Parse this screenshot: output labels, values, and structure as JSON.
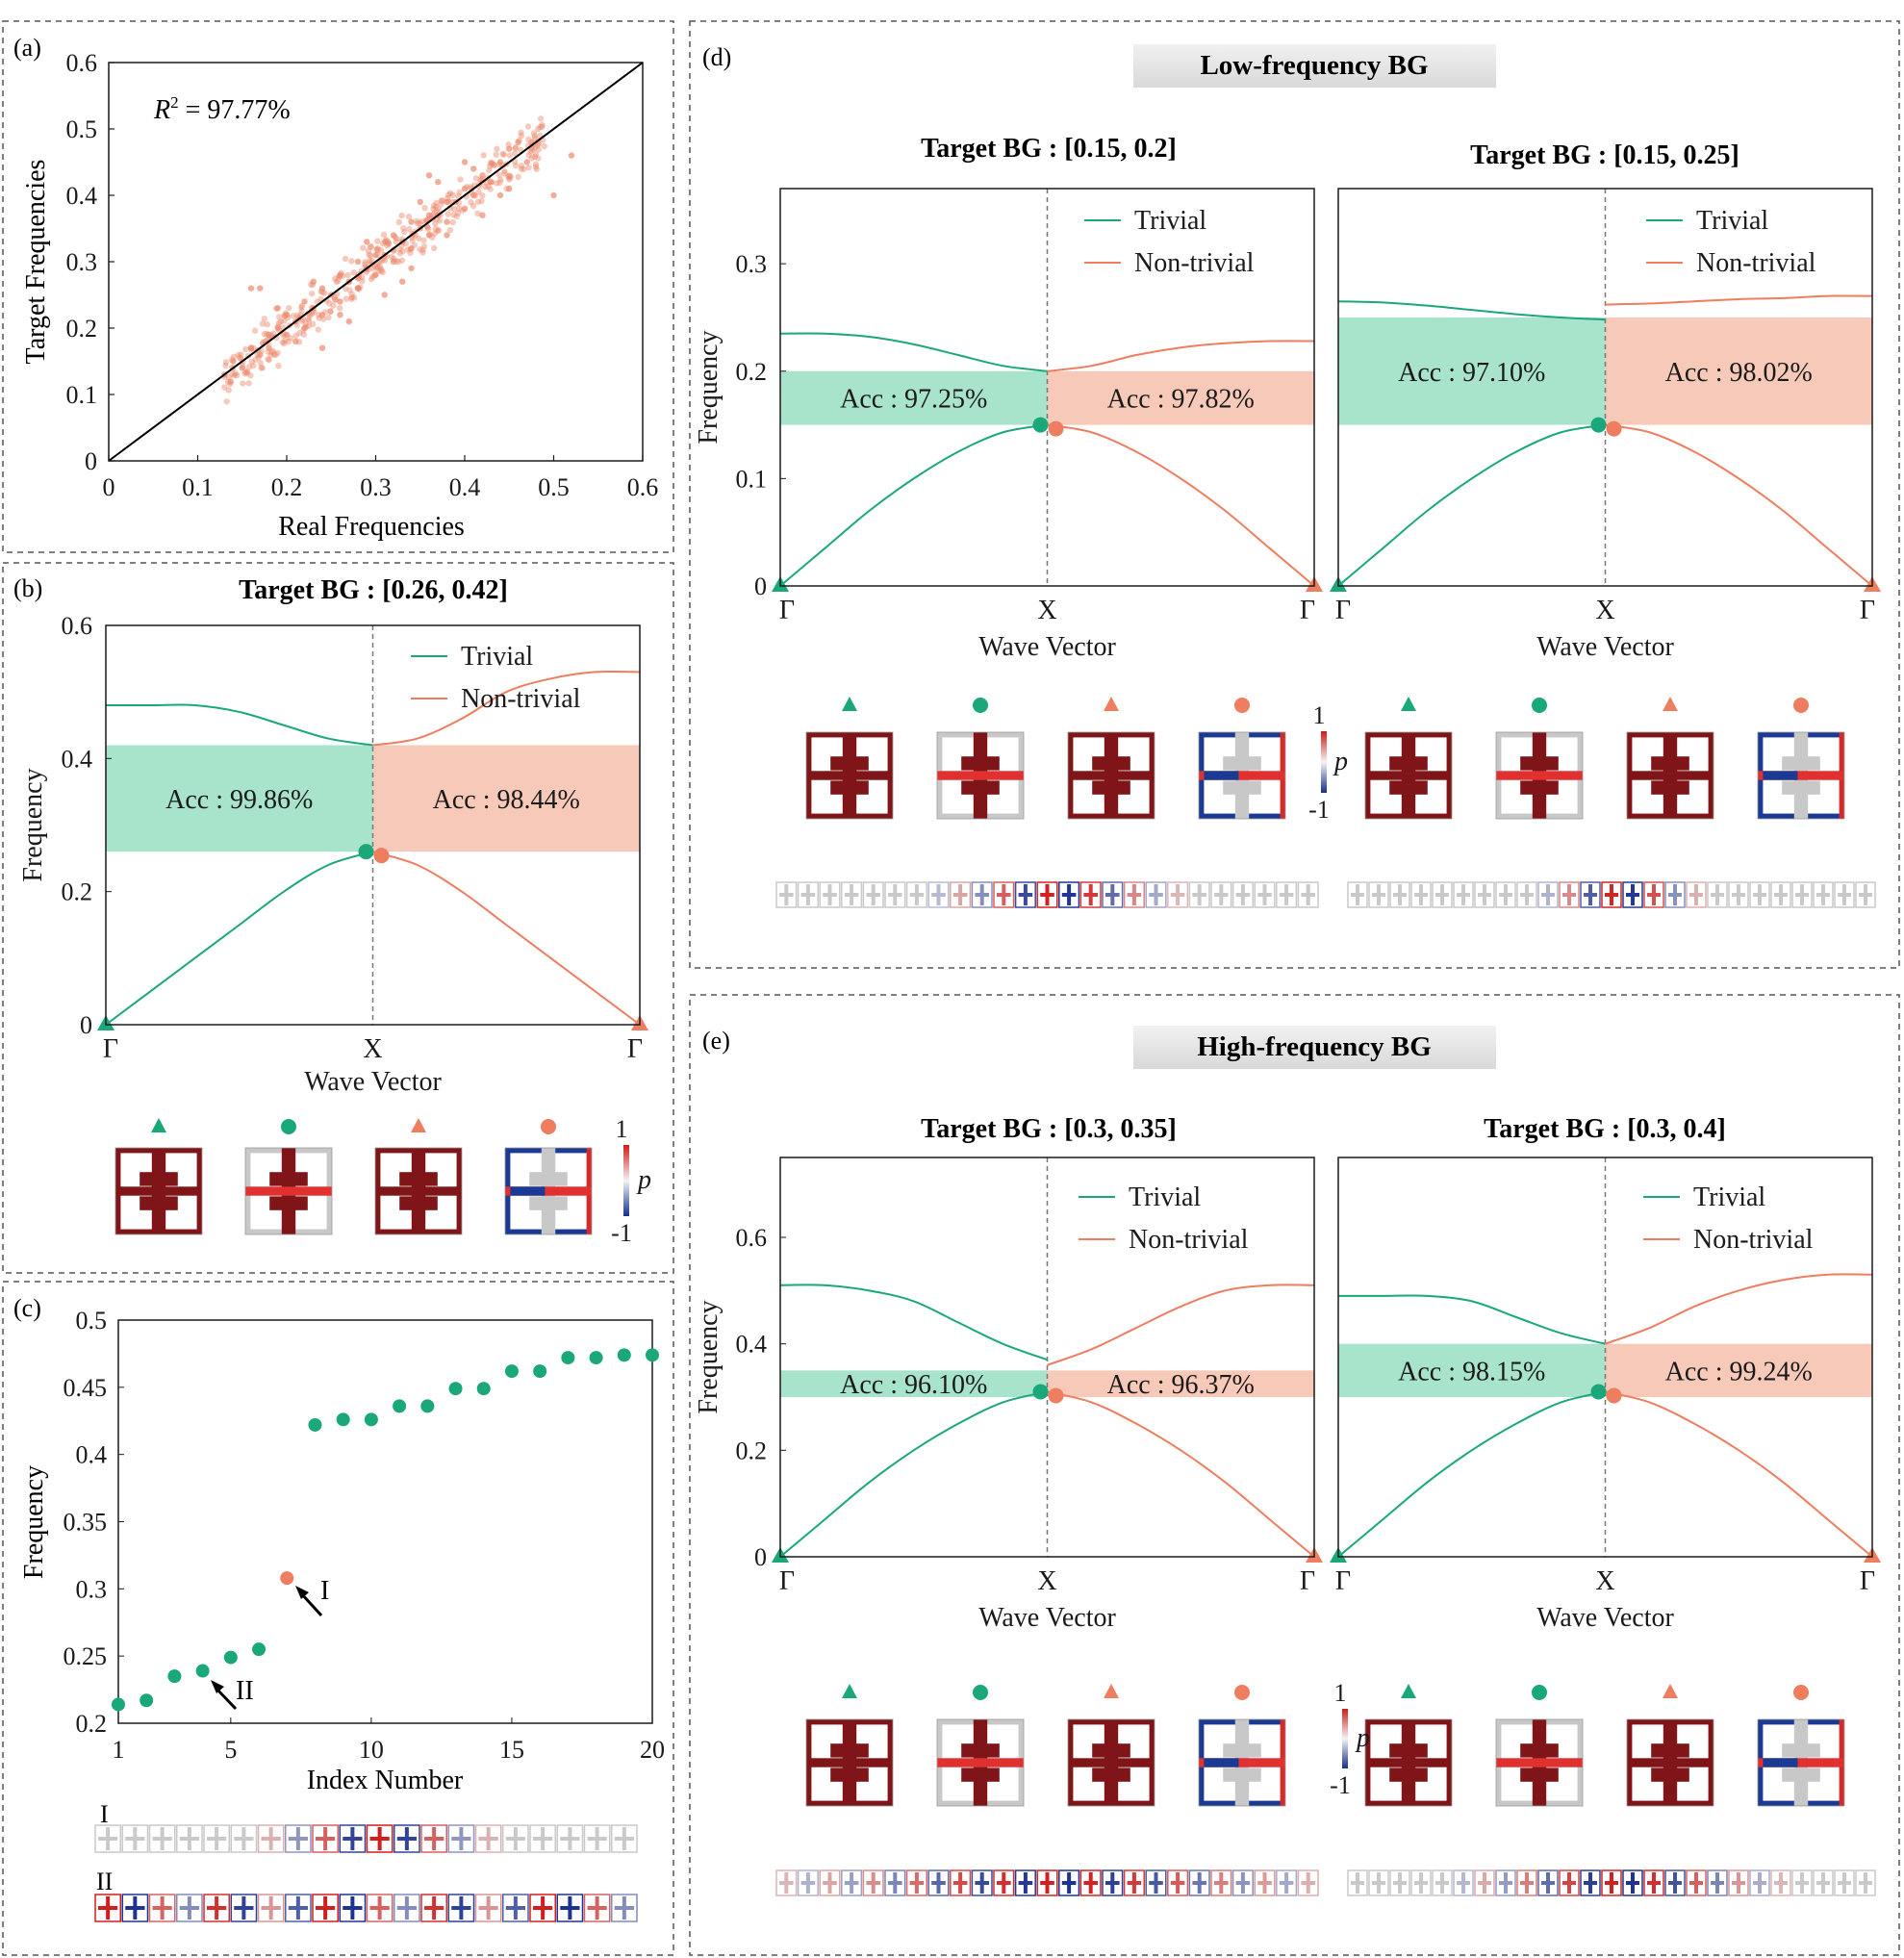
{
  "colors": {
    "trivial": "#1aa87a",
    "nontrivial": "#ef7d5f",
    "trivial_band": "#a8e3cc",
    "nontrivial_band": "#f7c9b9",
    "scatter": "#ec8a6d",
    "dark_red": "#7f1518",
    "frame": "#1a1a1a",
    "dashed": "#777777"
  },
  "common": {
    "trivial_label": "Trivial",
    "nontrivial_label": "Non-trivial",
    "gamma": "Γ",
    "x_point": "X",
    "wave_vector": "Wave Vector",
    "frequency": "Frequency",
    "colorbar_max": "1",
    "colorbar_min": "-1",
    "colorbar_symbol": "p"
  },
  "panel_a": {
    "label": "(a)",
    "r2_symbol": "R",
    "r2_sup": "2",
    "r2_text": " = 97.77%",
    "xlabel": "Real Frequencies",
    "ylabel": "Target Frequencies",
    "ticks": [
      "0",
      "0.1",
      "0.2",
      "0.3",
      "0.4",
      "0.5",
      "0.6"
    ]
  },
  "panel_b": {
    "label": "(b)",
    "title": "Target BG : [0.26, 0.42]",
    "yticks": [
      "0",
      "0.2",
      "0.4",
      "0.6"
    ],
    "acc_trivial": "Acc : 99.86%",
    "acc_nontrivial": "Acc : 98.44%"
  },
  "panel_c": {
    "label": "(c)",
    "xlabel": "Index Number",
    "ylabel": "Frequency",
    "xticks": [
      "1",
      "5",
      "10",
      "15",
      "20"
    ],
    "yticks": [
      "0.2",
      "0.25",
      "0.3",
      "0.35",
      "0.4",
      "0.45",
      "0.5"
    ],
    "annot_I": "I",
    "annot_II": "II",
    "strip_I": "I",
    "strip_II": "II"
  },
  "panel_d": {
    "label": "(d)",
    "banner": "Low-frequency BG",
    "left_title": "Target BG : [0.15, 0.2]",
    "right_title": "Target BG : [0.15, 0.25]",
    "yticks": [
      "0",
      "0.1",
      "0.2",
      "0.3"
    ],
    "left_acc_trivial": "Acc : 97.25%",
    "left_acc_nontrivial": "Acc : 97.82%",
    "right_acc_trivial": "Acc : 97.10%",
    "right_acc_nontrivial": "Acc : 98.02%"
  },
  "panel_e": {
    "label": "(e)",
    "banner": "High-frequency BG",
    "left_title": "Target BG : [0.3, 0.35]",
    "right_title": "Target BG : [0.3, 0.4]",
    "yticks": [
      "0",
      "0.2",
      "0.4",
      "0.6"
    ],
    "left_acc_trivial": "Acc : 96.10%",
    "left_acc_nontrivial": "Acc : 96.37%",
    "right_acc_trivial": "Acc : 98.15%",
    "right_acc_nontrivial": "Acc : 99.24%"
  },
  "chart_data": [
    {
      "id": "a",
      "type": "scatter",
      "title": "",
      "xlabel": "Real Frequencies",
      "ylabel": "Target Frequencies",
      "xlim": [
        0,
        0.6
      ],
      "ylim": [
        0,
        0.6
      ],
      "annotation": "R² = 97.77%",
      "reference_line": [
        [
          0,
          0
        ],
        [
          0.6,
          0.6
        ]
      ],
      "points_note": "dense cloud along y = x, roughly x in [0.12, 0.52]",
      "points": [
        [
          0.13,
          0.13
        ],
        [
          0.14,
          0.15
        ],
        [
          0.15,
          0.14
        ],
        [
          0.16,
          0.17
        ],
        [
          0.17,
          0.16
        ],
        [
          0.18,
          0.19
        ],
        [
          0.18,
          0.17
        ],
        [
          0.19,
          0.2
        ],
        [
          0.2,
          0.19
        ],
        [
          0.2,
          0.22
        ],
        [
          0.21,
          0.21
        ],
        [
          0.22,
          0.2
        ],
        [
          0.22,
          0.24
        ],
        [
          0.23,
          0.23
        ],
        [
          0.24,
          0.22
        ],
        [
          0.24,
          0.26
        ],
        [
          0.25,
          0.25
        ],
        [
          0.26,
          0.24
        ],
        [
          0.26,
          0.28
        ],
        [
          0.27,
          0.27
        ],
        [
          0.28,
          0.26
        ],
        [
          0.28,
          0.3
        ],
        [
          0.29,
          0.29
        ],
        [
          0.3,
          0.28
        ],
        [
          0.3,
          0.31
        ],
        [
          0.31,
          0.31
        ],
        [
          0.32,
          0.3
        ],
        [
          0.32,
          0.34
        ],
        [
          0.33,
          0.33
        ],
        [
          0.34,
          0.32
        ],
        [
          0.34,
          0.36
        ],
        [
          0.35,
          0.35
        ],
        [
          0.36,
          0.34
        ],
        [
          0.36,
          0.37
        ],
        [
          0.37,
          0.37
        ],
        [
          0.38,
          0.36
        ],
        [
          0.38,
          0.39
        ],
        [
          0.39,
          0.39
        ],
        [
          0.4,
          0.38
        ],
        [
          0.4,
          0.41
        ],
        [
          0.41,
          0.4
        ],
        [
          0.42,
          0.43
        ],
        [
          0.43,
          0.42
        ],
        [
          0.44,
          0.45
        ],
        [
          0.45,
          0.47
        ],
        [
          0.46,
          0.48
        ],
        [
          0.16,
          0.26
        ],
        [
          0.17,
          0.26
        ],
        [
          0.5,
          0.4
        ],
        [
          0.52,
          0.46
        ],
        [
          0.36,
          0.43
        ],
        [
          0.37,
          0.42
        ],
        [
          0.4,
          0.45
        ],
        [
          0.31,
          0.25
        ],
        [
          0.33,
          0.27
        ],
        [
          0.24,
          0.17
        ],
        [
          0.27,
          0.21
        ],
        [
          0.42,
          0.37
        ],
        [
          0.45,
          0.41
        ],
        [
          0.35,
          0.39
        ],
        [
          0.29,
          0.33
        ],
        [
          0.23,
          0.27
        ],
        [
          0.21,
          0.18
        ],
        [
          0.19,
          0.23
        ],
        [
          0.41,
          0.44
        ],
        [
          0.38,
          0.34
        ],
        [
          0.34,
          0.29
        ],
        [
          0.26,
          0.22
        ],
        [
          0.44,
          0.4
        ],
        [
          0.47,
          0.45
        ]
      ]
    },
    {
      "id": "b",
      "type": "line",
      "title": "Target BG : [0.26, 0.42]",
      "ylabel": "Frequency",
      "xlabel": "Wave Vector",
      "x_ticks": [
        "Γ",
        "X",
        "Γ"
      ],
      "ylim": [
        0,
        0.6
      ],
      "gap_trivial": [
        0.26,
        0.42
      ],
      "gap_nontrivial": [
        0.26,
        0.42
      ],
      "series": [
        {
          "name": "Trivial",
          "segment": "Γ-X",
          "band": "lower",
          "values": [
            0,
            0.05,
            0.1,
            0.15,
            0.2,
            0.24,
            0.26
          ]
        },
        {
          "name": "Trivial",
          "segment": "Γ-X",
          "band": "upper",
          "values": [
            0.48,
            0.48,
            0.48,
            0.47,
            0.45,
            0.43,
            0.42
          ]
        },
        {
          "name": "Non-trivial",
          "segment": "X-Γ",
          "band": "lower",
          "values": [
            0.26,
            0.24,
            0.2,
            0.15,
            0.1,
            0.05,
            0
          ]
        },
        {
          "name": "Non-trivial",
          "segment": "X-Γ",
          "band": "upper",
          "values": [
            0.42,
            0.43,
            0.46,
            0.5,
            0.52,
            0.53,
            0.53
          ]
        }
      ],
      "accuracy": {
        "trivial": "99.86%",
        "nontrivial": "98.44%"
      }
    },
    {
      "id": "c",
      "type": "scatter",
      "xlabel": "Index Number",
      "ylabel": "Frequency",
      "xlim": [
        1,
        20
      ],
      "ylim": [
        0.2,
        0.5
      ],
      "x": [
        1,
        2,
        3,
        4,
        5,
        6,
        7,
        8,
        9,
        10,
        11,
        12,
        13,
        14,
        15,
        16,
        17,
        18,
        19,
        20
      ],
      "y": [
        0.214,
        0.217,
        0.235,
        0.239,
        0.249,
        0.255,
        0.308,
        0.422,
        0.426,
        0.426,
        0.436,
        0.436,
        0.449,
        0.449,
        0.462,
        0.462,
        0.472,
        0.472,
        0.474,
        0.474
      ],
      "highlighted": {
        "index": 7,
        "label": "I"
      },
      "annotated": {
        "index": 4,
        "label": "II"
      }
    },
    {
      "id": "d-left",
      "type": "line",
      "title": "Target BG : [0.15, 0.2]",
      "xlabel": "Wave Vector",
      "ylabel": "Frequency",
      "ylim": [
        0,
        0.37
      ],
      "gap": [
        0.15,
        0.2
      ],
      "series": [
        {
          "name": "Trivial",
          "segment": "Γ-X",
          "band": "lower",
          "values": [
            0,
            0.035,
            0.07,
            0.1,
            0.125,
            0.143,
            0.15
          ]
        },
        {
          "name": "Trivial",
          "segment": "Γ-X",
          "band": "upper",
          "values": [
            0.235,
            0.235,
            0.232,
            0.225,
            0.215,
            0.205,
            0.2
          ]
        },
        {
          "name": "Non-trivial",
          "segment": "X-Γ",
          "band": "lower",
          "values": [
            0.15,
            0.143,
            0.125,
            0.1,
            0.07,
            0.035,
            0
          ]
        },
        {
          "name": "Non-trivial",
          "segment": "X-Γ",
          "band": "upper",
          "values": [
            0.2,
            0.205,
            0.215,
            0.222,
            0.226,
            0.228,
            0.228
          ]
        }
      ],
      "accuracy": {
        "trivial": "97.25%",
        "nontrivial": "97.82%"
      }
    },
    {
      "id": "d-right",
      "type": "line",
      "title": "Target BG : [0.15, 0.25]",
      "xlabel": "Wave Vector",
      "ylabel": "Frequency",
      "ylim": [
        0,
        0.37
      ],
      "gap": [
        0.15,
        0.25
      ],
      "series": [
        {
          "name": "Trivial",
          "segment": "Γ-X",
          "band": "lower",
          "values": [
            0,
            0.035,
            0.07,
            0.1,
            0.125,
            0.143,
            0.15
          ]
        },
        {
          "name": "Trivial",
          "segment": "Γ-X",
          "band": "upper",
          "values": [
            0.265,
            0.264,
            0.261,
            0.257,
            0.253,
            0.25,
            0.248
          ]
        },
        {
          "name": "Non-trivial",
          "segment": "X-Γ",
          "band": "lower",
          "values": [
            0.15,
            0.143,
            0.125,
            0.1,
            0.07,
            0.035,
            0
          ]
        },
        {
          "name": "Non-trivial",
          "segment": "X-Γ",
          "band": "upper",
          "values": [
            0.262,
            0.263,
            0.265,
            0.267,
            0.268,
            0.27,
            0.27
          ]
        }
      ],
      "accuracy": {
        "trivial": "97.10%",
        "nontrivial": "98.02%"
      }
    },
    {
      "id": "e-left",
      "type": "line",
      "title": "Target BG : [0.3, 0.35]",
      "xlabel": "Wave Vector",
      "ylabel": "Frequency",
      "ylim": [
        0,
        0.75
      ],
      "gap": [
        0.3,
        0.35
      ],
      "series": [
        {
          "name": "Trivial",
          "segment": "Γ-X",
          "band": "lower",
          "values": [
            0,
            0.07,
            0.14,
            0.2,
            0.25,
            0.29,
            0.31
          ]
        },
        {
          "name": "Trivial",
          "segment": "Γ-X",
          "band": "upper",
          "values": [
            0.51,
            0.51,
            0.5,
            0.48,
            0.44,
            0.4,
            0.37
          ]
        },
        {
          "name": "Non-trivial",
          "segment": "X-Γ",
          "band": "lower",
          "values": [
            0.31,
            0.29,
            0.25,
            0.2,
            0.14,
            0.07,
            0
          ]
        },
        {
          "name": "Non-trivial",
          "segment": "X-Γ",
          "band": "upper",
          "values": [
            0.36,
            0.39,
            0.43,
            0.47,
            0.5,
            0.51,
            0.51
          ]
        }
      ],
      "accuracy": {
        "trivial": "96.10%",
        "nontrivial": "96.37%"
      }
    },
    {
      "id": "e-right",
      "type": "line",
      "title": "Target BG : [0.3, 0.4]",
      "xlabel": "Wave Vector",
      "ylabel": "Frequency",
      "ylim": [
        0,
        0.75
      ],
      "gap": [
        0.3,
        0.4
      ],
      "series": [
        {
          "name": "Trivial",
          "segment": "Γ-X",
          "band": "lower",
          "values": [
            0,
            0.07,
            0.14,
            0.2,
            0.25,
            0.29,
            0.31
          ]
        },
        {
          "name": "Trivial",
          "segment": "Γ-X",
          "band": "upper",
          "values": [
            0.49,
            0.49,
            0.49,
            0.48,
            0.45,
            0.42,
            0.4
          ]
        },
        {
          "name": "Non-trivial",
          "segment": "X-Γ",
          "band": "lower",
          "values": [
            0.31,
            0.29,
            0.25,
            0.2,
            0.14,
            0.07,
            0
          ]
        },
        {
          "name": "Non-trivial",
          "segment": "X-Γ",
          "band": "upper",
          "values": [
            0.4,
            0.43,
            0.47,
            0.5,
            0.52,
            0.53,
            0.53
          ]
        }
      ],
      "accuracy": {
        "trivial": "98.15%",
        "nontrivial": "99.24%"
      }
    }
  ]
}
